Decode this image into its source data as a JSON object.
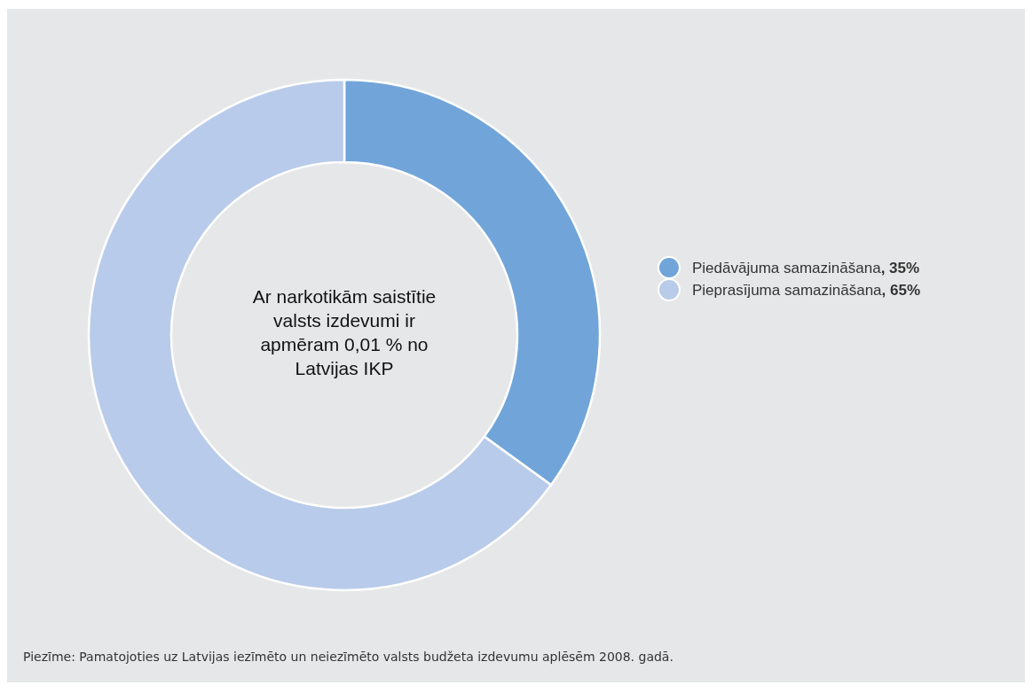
{
  "chart_data": {
    "type": "donut",
    "categories": [
      "Piedāvājuma samazināšana",
      "Pieprasījuma samazināšana"
    ],
    "values": [
      35,
      65
    ],
    "colors": [
      "#71a5d9",
      "#b9cbea"
    ],
    "value_labels": [
      ", 35%",
      ", 65%"
    ],
    "legend": "right",
    "annotations": [
      "Ar narkotikām saistītie valsts izdevumi ir apmēram 0,01 % no Latvijas IKP",
      "Piezīme: Pamatojoties uz Latvijas iezīmēto un neiezīmēto valsts budžeta izdevumu aplēsēm 2008. gadā."
    ]
  }
}
